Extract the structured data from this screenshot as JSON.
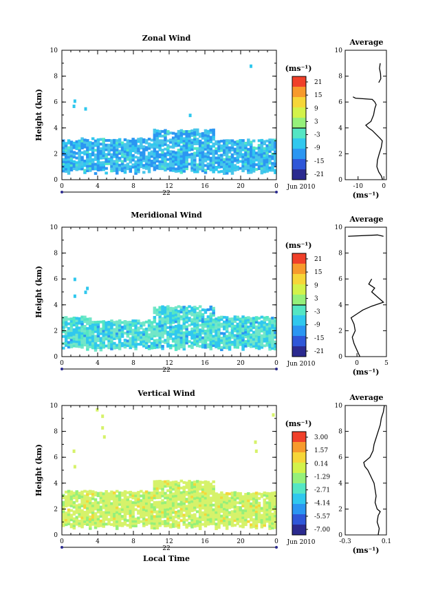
{
  "panels": [
    {
      "title": "Zonal Wind",
      "ylabel": "Height (km)",
      "ylim": [
        0,
        10
      ],
      "yticks": [
        "0",
        "2",
        "4",
        "6",
        "8",
        "10"
      ],
      "xlim": [
        0,
        24
      ],
      "xticks": [
        "0",
        "4",
        "8",
        "12",
        "16",
        "20",
        "0"
      ],
      "day_label": "22",
      "month_label": "Jun 2010",
      "colorbar": {
        "unit": "(ms⁻¹)",
        "labels": [
          "21",
          "15",
          "9",
          "3",
          "-3",
          "-9",
          "-15",
          "-21"
        ],
        "zero_line_value": 0
      },
      "profile": {
        "title": "Average",
        "xticks": [
          "-10",
          "0"
        ],
        "xlim": [
          -15,
          1
        ],
        "unit": "(ms⁻¹)",
        "points": [
          [
            -0.5,
            0
          ],
          [
            -1,
            0.3
          ],
          [
            -2,
            0.6
          ],
          [
            -2.7,
            1
          ],
          [
            -2.5,
            1.5
          ],
          [
            -1.8,
            2
          ],
          [
            -1,
            2.5
          ],
          [
            -0.6,
            3
          ],
          [
            -1.5,
            3.2
          ],
          [
            -3,
            3.5
          ],
          [
            -4.5,
            3.8
          ],
          [
            -6,
            4
          ],
          [
            -7,
            4.2
          ],
          [
            -5,
            4.5
          ],
          [
            -4,
            5
          ],
          [
            -3.5,
            5.5
          ],
          [
            -3,
            5.8
          ],
          [
            -3.5,
            6
          ],
          [
            -4.5,
            6.2
          ],
          [
            -11,
            6.3
          ],
          [
            -12,
            6.4
          ]
        ]
      },
      "profile_upper": [
        [
          -2,
          7.5
        ],
        [
          -1.2,
          7.8
        ],
        [
          -1.3,
          8.2
        ],
        [
          -1.7,
          8.6
        ],
        [
          -1.4,
          9
        ]
      ]
    },
    {
      "title": "Meridional Wind",
      "ylabel": "Height (km)",
      "ylim": [
        0,
        10
      ],
      "yticks": [
        "0",
        "2",
        "4",
        "6",
        "8",
        "10"
      ],
      "xlim": [
        0,
        24
      ],
      "xticks": [
        "0",
        "4",
        "8",
        "12",
        "16",
        "20",
        "0"
      ],
      "day_label": "22",
      "month_label": "Jun 2010",
      "colorbar": {
        "unit": "(ms⁻¹)",
        "labels": [
          "21",
          "15",
          "9",
          "3",
          "-3",
          "-9",
          "-15",
          "-21"
        ],
        "zero_line_value": 0
      },
      "profile": {
        "title": "Average",
        "xticks": [
          "0",
          "5"
        ],
        "xlim": [
          -2,
          5
        ],
        "unit": "(ms⁻¹)",
        "points": [
          [
            0.5,
            0
          ],
          [
            0,
            0.5
          ],
          [
            -0.5,
            1
          ],
          [
            -0.8,
            1.5
          ],
          [
            -0.3,
            2
          ],
          [
            -0.5,
            2.5
          ],
          [
            -1,
            3
          ],
          [
            0,
            3.3
          ],
          [
            1,
            3.6
          ],
          [
            2.5,
            3.9
          ],
          [
            4.5,
            4.2
          ],
          [
            3.5,
            4.6
          ],
          [
            2.5,
            5
          ],
          [
            3,
            5.3
          ],
          [
            2,
            5.6
          ],
          [
            2.5,
            6
          ]
        ]
      },
      "profile_upper": [
        [
          -1.5,
          9.3
        ],
        [
          3.5,
          9.4
        ],
        [
          4.5,
          9.3
        ]
      ]
    },
    {
      "title": "Vertical Wind",
      "ylabel": "Height (km)",
      "ylim": [
        0,
        10
      ],
      "yticks": [
        "0",
        "2",
        "4",
        "6",
        "8",
        "10"
      ],
      "xlim": [
        0,
        24
      ],
      "xticks": [
        "0",
        "4",
        "8",
        "12",
        "16",
        "20",
        "0"
      ],
      "day_label": "22",
      "month_label": "Jun 2010",
      "xlabel": "Local Time",
      "colorbar": {
        "unit": "(ms⁻¹)",
        "labels": [
          "3.00",
          "1.57",
          "0.14",
          "-1.29",
          "-2.71",
          "-4.14",
          "-5.57",
          "-7.00"
        ],
        "zero_line_value": null
      },
      "profile": {
        "title": "Average",
        "xticks": [
          "-0.3",
          "0.1"
        ],
        "xlim": [
          -0.3,
          0.1
        ],
        "unit": "(ms⁻¹)",
        "points": [
          [
            0.02,
            0
          ],
          [
            0.03,
            0.5
          ],
          [
            0.01,
            1
          ],
          [
            0.02,
            1.5
          ],
          [
            0.04,
            1.8
          ],
          [
            0.01,
            2
          ],
          [
            -0.01,
            2.5
          ],
          [
            0,
            3
          ],
          [
            -0.01,
            3.5
          ],
          [
            -0.02,
            4
          ],
          [
            -0.05,
            4.5
          ],
          [
            -0.08,
            5
          ],
          [
            -0.11,
            5.3
          ],
          [
            -0.12,
            5.6
          ],
          [
            -0.06,
            6
          ],
          [
            -0.03,
            6.5
          ],
          [
            -0.02,
            7
          ],
          [
            0,
            7.5
          ],
          [
            0.02,
            8
          ],
          [
            0.04,
            8.5
          ],
          [
            0.05,
            9
          ],
          [
            0.07,
            9.5
          ],
          [
            0.08,
            10
          ]
        ]
      },
      "profile_upper": []
    }
  ],
  "colormap": [
    "#2b2a8f",
    "#2f57d8",
    "#2b96f2",
    "#30c8ee",
    "#54e6c4",
    "#95f07a",
    "#d3f24a",
    "#f6d638",
    "#f79a2c",
    "#f0402a"
  ],
  "fills": {
    "zonal": "#49c6ea",
    "meridional": "#72e6c8",
    "vertical": "#d6f26a"
  }
}
